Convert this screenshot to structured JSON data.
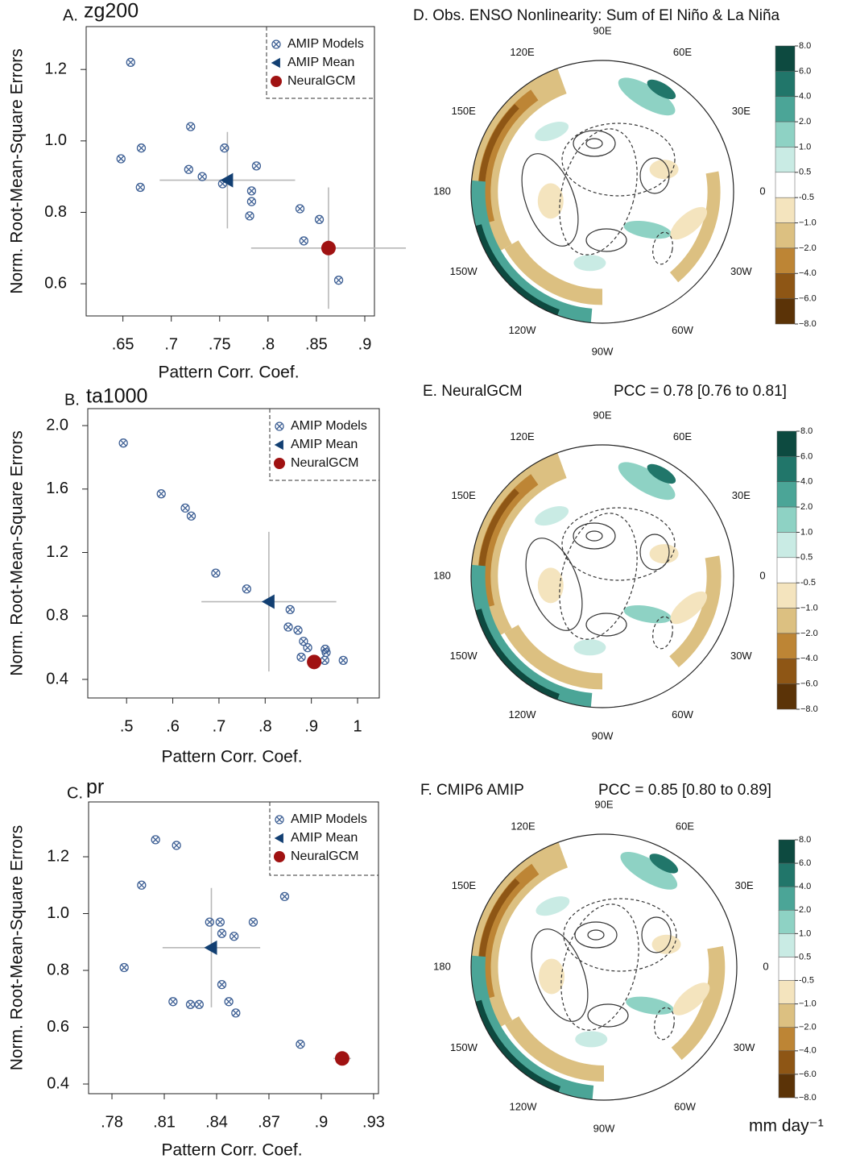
{
  "chart_data": [
    {
      "type": "scatter",
      "panel_label": "A.",
      "title": "zg200",
      "xlabel": "Pattern Corr. Coef.",
      "ylabel": "Norm. Root-Mean-Square Errors",
      "xlim": [
        0.612,
        0.91
      ],
      "ylim": [
        0.51,
        1.32
      ],
      "xticks": [
        {
          "value": 0.65,
          "label": ".65"
        },
        {
          "value": 0.7,
          "label": ".7"
        },
        {
          "value": 0.75,
          "label": ".75"
        },
        {
          "value": 0.8,
          "label": ".8"
        },
        {
          "value": 0.85,
          "label": ".85"
        },
        {
          "value": 0.9,
          "label": ".9"
        }
      ],
      "yticks": [
        0.6,
        0.8,
        {
          "value": 1.0,
          "label": "1.0"
        },
        1.2
      ],
      "series": [
        {
          "name": "AMIP Models",
          "color": "#3d5f94",
          "marker": "circle-x",
          "x": [
            0.658,
            0.72,
            0.669,
            0.755,
            0.648,
            0.718,
            0.788,
            0.732,
            0.668,
            0.753,
            0.783,
            0.783,
            0.781,
            0.833,
            0.853,
            0.837,
            0.873
          ],
          "y": [
            1.22,
            1.04,
            0.98,
            0.98,
            0.95,
            0.92,
            0.93,
            0.9,
            0.87,
            0.88,
            0.86,
            0.83,
            0.79,
            0.81,
            0.78,
            0.72,
            0.61
          ]
        },
        {
          "name": "AMIP Mean",
          "color": "#123f72",
          "marker": "triangle-left",
          "x": [
            0.758
          ],
          "y": [
            0.89
          ],
          "xerr": [
            0.07
          ],
          "yerr": [
            0.135
          ]
        },
        {
          "name": "NeuralGCM",
          "color": "#a01212",
          "marker": "circle",
          "x": [
            0.8625
          ],
          "y": [
            0.7
          ],
          "xerr": [
            0.08
          ],
          "yerr": [
            0.17
          ]
        }
      ]
    },
    {
      "type": "scatter",
      "panel_label": "B.",
      "title": "ta1000",
      "xlabel": "Pattern Corr. Coef.",
      "ylabel": "Norm. Root-Mean-Square Errors",
      "xlim": [
        0.416,
        1.047
      ],
      "ylim": [
        0.283,
        2.107
      ],
      "xticks": [
        {
          "value": 0.5,
          "label": ".5"
        },
        {
          "value": 0.6,
          "label": ".6"
        },
        {
          "value": 0.7,
          "label": ".7"
        },
        {
          "value": 0.8,
          "label": ".8"
        },
        {
          "value": 0.9,
          "label": ".9"
        },
        1
      ],
      "yticks": [
        0.4,
        0.8,
        1.2,
        1.6,
        {
          "value": 2.0,
          "label": "2.0"
        }
      ],
      "series": [
        {
          "name": "AMIP Models",
          "color": "#3d5f94",
          "marker": "circle-x",
          "x": [
            0.493,
            0.575,
            0.627,
            0.64,
            0.693,
            0.76,
            0.854,
            0.85,
            0.871,
            0.883,
            0.892,
            0.878,
            0.93,
            0.932,
            0.929,
            0.969
          ],
          "y": [
            1.89,
            1.57,
            1.48,
            1.43,
            1.07,
            0.97,
            0.84,
            0.73,
            0.71,
            0.64,
            0.6,
            0.54,
            0.59,
            0.57,
            0.52,
            0.52
          ]
        },
        {
          "name": "AMIP Mean",
          "color": "#123f72",
          "marker": "triangle-left",
          "x": [
            0.808
          ],
          "y": [
            0.89
          ],
          "xerr": [
            0.146
          ],
          "yerr": [
            0.44
          ]
        },
        {
          "name": "NeuralGCM",
          "color": "#a01212",
          "marker": "circle",
          "x": [
            0.906
          ],
          "y": [
            0.51
          ],
          "xerr": [
            0.015
          ],
          "yerr": [
            0.03
          ]
        }
      ]
    },
    {
      "type": "scatter",
      "panel_label": "C.",
      "title": "pr",
      "xlabel": "Pattern Corr. Coef.",
      "ylabel": "Norm. Root-Mean-Square Errors",
      "xlim": [
        0.7666,
        0.9328
      ],
      "ylim": [
        0.366,
        1.393
      ],
      "xticks": [
        {
          "value": 0.78,
          "label": ".78"
        },
        {
          "value": 0.81,
          "label": ".81"
        },
        {
          "value": 0.84,
          "label": ".84"
        },
        {
          "value": 0.87,
          "label": ".87"
        },
        {
          "value": 0.9,
          "label": ".9"
        },
        {
          "value": 0.93,
          "label": ".93"
        }
      ],
      "yticks": [
        0.4,
        0.6,
        0.8,
        {
          "value": 1.0,
          "label": "1.0"
        },
        1.2
      ],
      "series": [
        {
          "name": "AMIP Models",
          "color": "#3d5f94",
          "marker": "circle-x",
          "x": [
            0.805,
            0.817,
            0.797,
            0.879,
            0.836,
            0.842,
            0.861,
            0.843,
            0.85,
            0.787,
            0.843,
            0.815,
            0.825,
            0.83,
            0.847,
            0.851,
            0.888
          ],
          "y": [
            1.26,
            1.24,
            1.1,
            1.06,
            0.97,
            0.97,
            0.97,
            0.93,
            0.92,
            0.81,
            0.75,
            0.69,
            0.68,
            0.68,
            0.69,
            0.65,
            0.54
          ]
        },
        {
          "name": "AMIP Mean",
          "color": "#123f72",
          "marker": "triangle-left",
          "x": [
            0.837
          ],
          "y": [
            0.88
          ],
          "xerr": [
            0.028
          ],
          "yerr": [
            0.21
          ]
        },
        {
          "name": "NeuralGCM",
          "color": "#a01212",
          "marker": "circle",
          "x": [
            0.912
          ],
          "y": [
            0.49
          ],
          "xerr": [
            0.005
          ],
          "yerr": [
            0.02
          ]
        }
      ]
    },
    {
      "type": "map",
      "title": "D. Obs. ENSO Nonlinearity: Sum of El Niño & La Niña",
      "lon_labels": [
        "90E",
        "60E",
        "30E",
        "0",
        "30W",
        "60W",
        "90W",
        "120W",
        "150W",
        "180",
        "150E",
        "120E"
      ],
      "colorbar_ticks": [
        {
          "value": 8,
          "label": "8.0"
        },
        {
          "value": 6,
          "label": "6.0"
        },
        {
          "value": 4,
          "label": "4.0"
        },
        {
          "value": 2,
          "label": "2.0"
        },
        {
          "value": 1,
          "label": "1.0"
        },
        0.5,
        -0.5,
        {
          "value": -1,
          "label": "−1.0"
        },
        {
          "value": -2,
          "label": "−2.0"
        },
        {
          "value": -4,
          "label": "−4.0"
        },
        {
          "value": -6,
          "label": "−6.0"
        },
        {
          "value": -8,
          "label": "−8.0"
        }
      ],
      "colorbar_colors": [
        "#0d4a40",
        "#21766a",
        "#4ba597",
        "#8ed2c4",
        "#c9ebe4",
        "#ffffff",
        "#f4e4be",
        "#dcc081",
        "#bd8535",
        "#8e5615",
        "#5b3307"
      ]
    },
    {
      "type": "map",
      "title": "E. NeuralGCM",
      "annotation": "PCC = 0.78 [0.76 to 0.81]",
      "lon_labels": [
        "90E",
        "60E",
        "30E",
        "0",
        "30W",
        "60W",
        "90W",
        "120W",
        "150W",
        "180",
        "150E",
        "120E"
      ],
      "colorbar_ticks": [
        {
          "value": 8,
          "label": "8.0"
        },
        {
          "value": 6,
          "label": "6.0"
        },
        {
          "value": 4,
          "label": "4.0"
        },
        {
          "value": 2,
          "label": "2.0"
        },
        {
          "value": 1,
          "label": "1.0"
        },
        0.5,
        -0.5,
        {
          "value": -1,
          "label": "−1.0"
        },
        {
          "value": -2,
          "label": "−2.0"
        },
        {
          "value": -4,
          "label": "−4.0"
        },
        {
          "value": -6,
          "label": "−6.0"
        },
        {
          "value": -8,
          "label": "−8.0"
        }
      ],
      "colorbar_colors": [
        "#0d4a40",
        "#21766a",
        "#4ba597",
        "#8ed2c4",
        "#c9ebe4",
        "#ffffff",
        "#f4e4be",
        "#dcc081",
        "#bd8535",
        "#8e5615",
        "#5b3307"
      ]
    },
    {
      "type": "map",
      "title": "F. CMIP6 AMIP",
      "annotation": "PCC = 0.85 [0.80 to 0.89]",
      "units": "mm day⁻¹",
      "lon_labels": [
        "90E",
        "60E",
        "30E",
        "0",
        "30W",
        "60W",
        "90W",
        "120W",
        "150W",
        "180",
        "150E",
        "120E"
      ],
      "colorbar_ticks": [
        {
          "value": 8,
          "label": "8.0"
        },
        {
          "value": 6,
          "label": "6.0"
        },
        {
          "value": 4,
          "label": "4.0"
        },
        {
          "value": 2,
          "label": "2.0"
        },
        {
          "value": 1,
          "label": "1.0"
        },
        0.5,
        -0.5,
        {
          "value": -1,
          "label": "−1.0"
        },
        {
          "value": -2,
          "label": "−2.0"
        },
        {
          "value": -4,
          "label": "−4.0"
        },
        {
          "value": -6,
          "label": "−6.0"
        },
        {
          "value": -8,
          "label": "−8.0"
        }
      ],
      "colorbar_colors": [
        "#0d4a40",
        "#21766a",
        "#4ba597",
        "#8ed2c4",
        "#c9ebe4",
        "#ffffff",
        "#f4e4be",
        "#dcc081",
        "#bd8535",
        "#8e5615",
        "#5b3307"
      ]
    }
  ]
}
